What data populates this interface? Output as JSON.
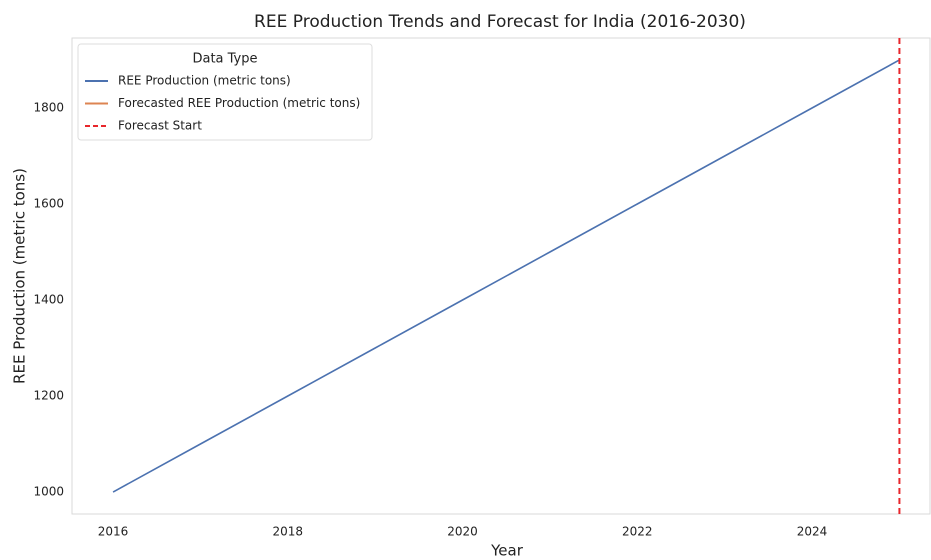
{
  "chart_data": {
    "type": "line",
    "title": "REE Production Trends and Forecast for India (2016-2030)",
    "x_label": "Year",
    "y_label": "REE Production (metric tons)",
    "x": [
      2016,
      2017,
      2018,
      2019,
      2020,
      2021,
      2022,
      2023,
      2024,
      2025
    ],
    "series": [
      {
        "name": "REE Production (metric tons)",
        "color": "#4c72b0",
        "values": [
          1000,
          1100,
          1200,
          1300,
          1400,
          1500,
          1600,
          1700,
          1800,
          1900
        ]
      },
      {
        "name": "Forecasted REE Production (metric tons)",
        "color": "#dd8452",
        "values": [
          null,
          null,
          null,
          null,
          null,
          null,
          null,
          null,
          null,
          null
        ]
      }
    ],
    "vline": {
      "name": "Forecast Start",
      "x": 2025,
      "color": "#e8262b"
    },
    "legend_title": "Data Type",
    "legend": "upper left",
    "grid": false,
    "xlim": [
      2015.53,
      2025.35
    ],
    "xticks": [
      2016,
      2018,
      2020,
      2022,
      2024
    ],
    "ylim": [
      954.2,
      1945.8
    ],
    "yticks": [
      1000,
      1200,
      1400,
      1600,
      1800
    ]
  }
}
